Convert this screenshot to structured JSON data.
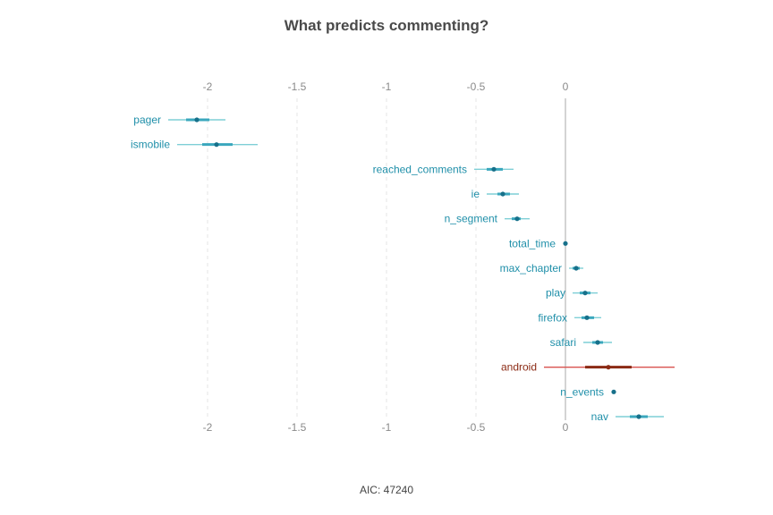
{
  "chart_data": {
    "type": "forest",
    "title": "What predicts commenting?",
    "caption": "AIC: 47240",
    "xlim": [
      -2.3,
      0.65
    ],
    "xticks": [
      -2,
      -1.5,
      -1,
      -0.5,
      0
    ],
    "xtick_labels": [
      "-2",
      "-1.5",
      "-1",
      "-0.5",
      "0"
    ],
    "grid": "vertical dashed at ticks",
    "colors": {
      "default": "#1f8fa9",
      "highlight": "#8b2a14",
      "ci_default": "#7fcfd6",
      "ci_highlight": "#d9534f"
    },
    "series": [
      {
        "name": "pager",
        "estimate": -2.06,
        "ci_inner": [
          -2.12,
          -1.99
        ],
        "ci_outer": [
          -2.22,
          -1.9
        ],
        "highlight": false
      },
      {
        "name": "ismobile",
        "estimate": -1.95,
        "ci_inner": [
          -2.03,
          -1.86
        ],
        "ci_outer": [
          -2.17,
          -1.72
        ],
        "highlight": false
      },
      {
        "name": "reached_comments",
        "estimate": -0.4,
        "ci_inner": [
          -0.44,
          -0.35
        ],
        "ci_outer": [
          -0.51,
          -0.29
        ],
        "highlight": false
      },
      {
        "name": "ie",
        "estimate": -0.35,
        "ci_inner": [
          -0.38,
          -0.31
        ],
        "ci_outer": [
          -0.44,
          -0.26
        ],
        "highlight": false
      },
      {
        "name": "n_segment",
        "estimate": -0.27,
        "ci_inner": [
          -0.3,
          -0.25
        ],
        "ci_outer": [
          -0.34,
          -0.2
        ],
        "highlight": false
      },
      {
        "name": "total_time",
        "estimate": 0.0,
        "ci_inner": [
          -0.005,
          0.005
        ],
        "ci_outer": [
          -0.005,
          0.005
        ],
        "highlight": false
      },
      {
        "name": "max_chapter",
        "estimate": 0.06,
        "ci_inner": [
          0.04,
          0.08
        ],
        "ci_outer": [
          0.02,
          0.1
        ],
        "highlight": false
      },
      {
        "name": "play",
        "estimate": 0.11,
        "ci_inner": [
          0.08,
          0.14
        ],
        "ci_outer": [
          0.04,
          0.18
        ],
        "highlight": false
      },
      {
        "name": "firefox",
        "estimate": 0.12,
        "ci_inner": [
          0.09,
          0.16
        ],
        "ci_outer": [
          0.05,
          0.2
        ],
        "highlight": false
      },
      {
        "name": "safari",
        "estimate": 0.18,
        "ci_inner": [
          0.15,
          0.21
        ],
        "ci_outer": [
          0.1,
          0.26
        ],
        "highlight": false
      },
      {
        "name": "android",
        "estimate": 0.24,
        "ci_inner": [
          0.11,
          0.37
        ],
        "ci_outer": [
          -0.12,
          0.61
        ],
        "highlight": true
      },
      {
        "name": "n_events",
        "estimate": 0.27,
        "ci_inner": [
          0.27,
          0.27
        ],
        "ci_outer": [
          0.27,
          0.27
        ],
        "highlight": false
      },
      {
        "name": "nav",
        "estimate": 0.41,
        "ci_inner": [
          0.36,
          0.46
        ],
        "ci_outer": [
          0.28,
          0.55
        ],
        "highlight": false
      }
    ]
  }
}
